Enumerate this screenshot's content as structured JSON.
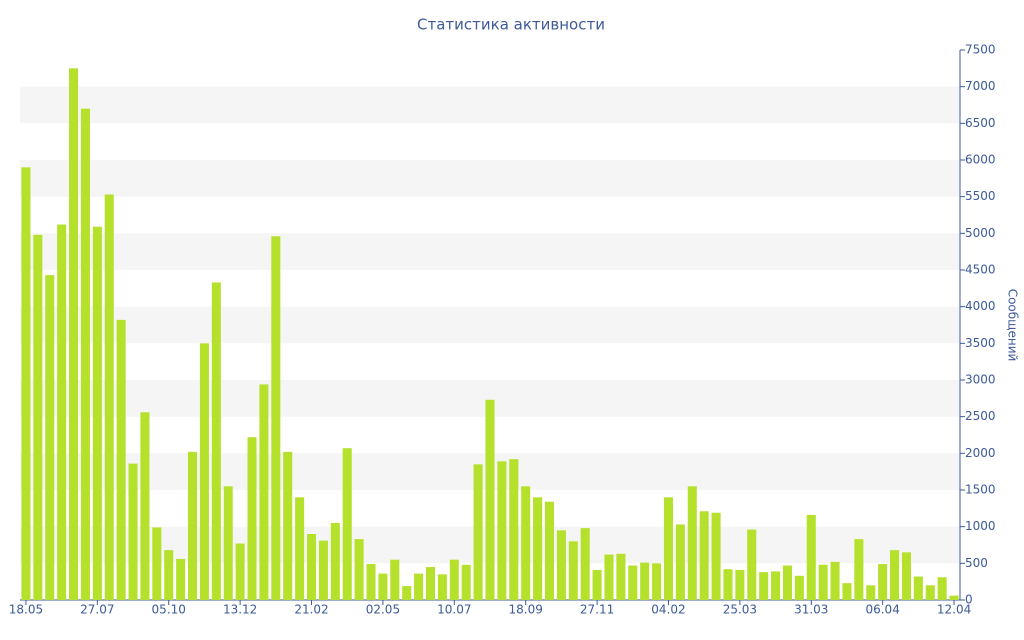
{
  "chart_data": {
    "type": "bar",
    "title": "Статистика активности",
    "y_axis_label": "Сообщений",
    "categories": [
      "18.05",
      null,
      null,
      null,
      null,
      null,
      "27.07",
      null,
      null,
      null,
      null,
      null,
      "05.10",
      null,
      null,
      null,
      null,
      null,
      "13.12",
      null,
      null,
      null,
      null,
      null,
      "21.02",
      null,
      null,
      null,
      null,
      null,
      "02.05",
      null,
      null,
      null,
      null,
      null,
      "10.07",
      null,
      null,
      null,
      null,
      null,
      "18.09",
      null,
      null,
      null,
      null,
      null,
      "27.11",
      null,
      null,
      null,
      null,
      null,
      "04.02",
      null,
      null,
      null,
      null,
      null,
      "25.03",
      null,
      null,
      null,
      null,
      null,
      "31.03",
      null,
      null,
      null,
      null,
      null,
      "06.04",
      null,
      null,
      null,
      null,
      null,
      "12.04"
    ],
    "values": [
      5900,
      4980,
      4430,
      5120,
      7250,
      6700,
      5090,
      5530,
      3820,
      1860,
      2560,
      990,
      680,
      560,
      2020,
      3500,
      4330,
      1550,
      770,
      2220,
      2940,
      4960,
      2020,
      1400,
      900,
      810,
      1050,
      2070,
      830,
      490,
      360,
      550,
      190,
      360,
      450,
      350,
      550,
      480,
      1850,
      2730,
      1890,
      1920,
      1550,
      1400,
      1340,
      950,
      800,
      980,
      410,
      620,
      630,
      470,
      510,
      500,
      1400,
      1030,
      1550,
      1210,
      1190,
      420,
      410,
      960,
      380,
      390,
      470,
      330,
      1160,
      480,
      520,
      230,
      830,
      200,
      490,
      680,
      650,
      320,
      200,
      310,
      60
    ],
    "color": "#b5e02c",
    "ylim": [
      0,
      7500
    ],
    "yticks": [
      0,
      500,
      1000,
      1500,
      2000,
      2500,
      3000,
      3500,
      4000,
      4500,
      5000,
      5500,
      6000,
      6500,
      7000,
      7500
    ],
    "grid": "bands",
    "y_axis_side": "right"
  }
}
